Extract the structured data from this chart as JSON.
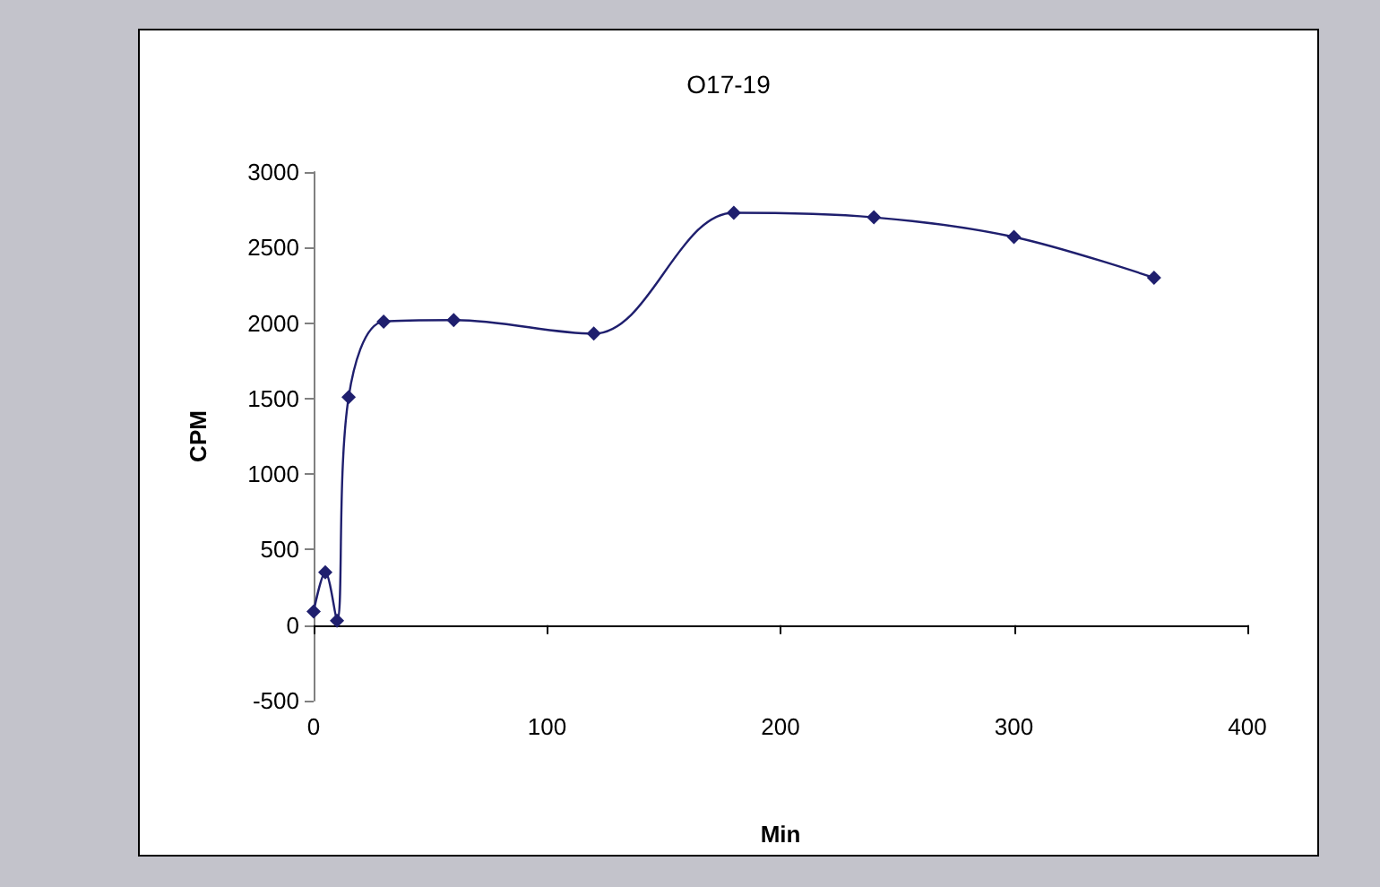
{
  "chart_data": {
    "type": "line",
    "title": "O17-19",
    "xlabel": "Min",
    "ylabel": "CPM",
    "x": [
      0,
      5,
      10,
      15,
      30,
      60,
      120,
      180,
      240,
      300,
      360
    ],
    "series": [
      {
        "color": "#1f1f6e",
        "values": [
          90,
          350,
          30,
          1510,
          2010,
          2020,
          1930,
          2730,
          2700,
          2570,
          2300
        ]
      }
    ],
    "xlim": [
      0,
      400
    ],
    "xticks": [
      0,
      100,
      200,
      300,
      400
    ],
    "ylim": [
      -500,
      3000
    ],
    "yticks": [
      -500,
      0,
      500,
      1000,
      1500,
      2000,
      2500,
      3000
    ],
    "marker": "diamond",
    "line_style": "solid"
  }
}
